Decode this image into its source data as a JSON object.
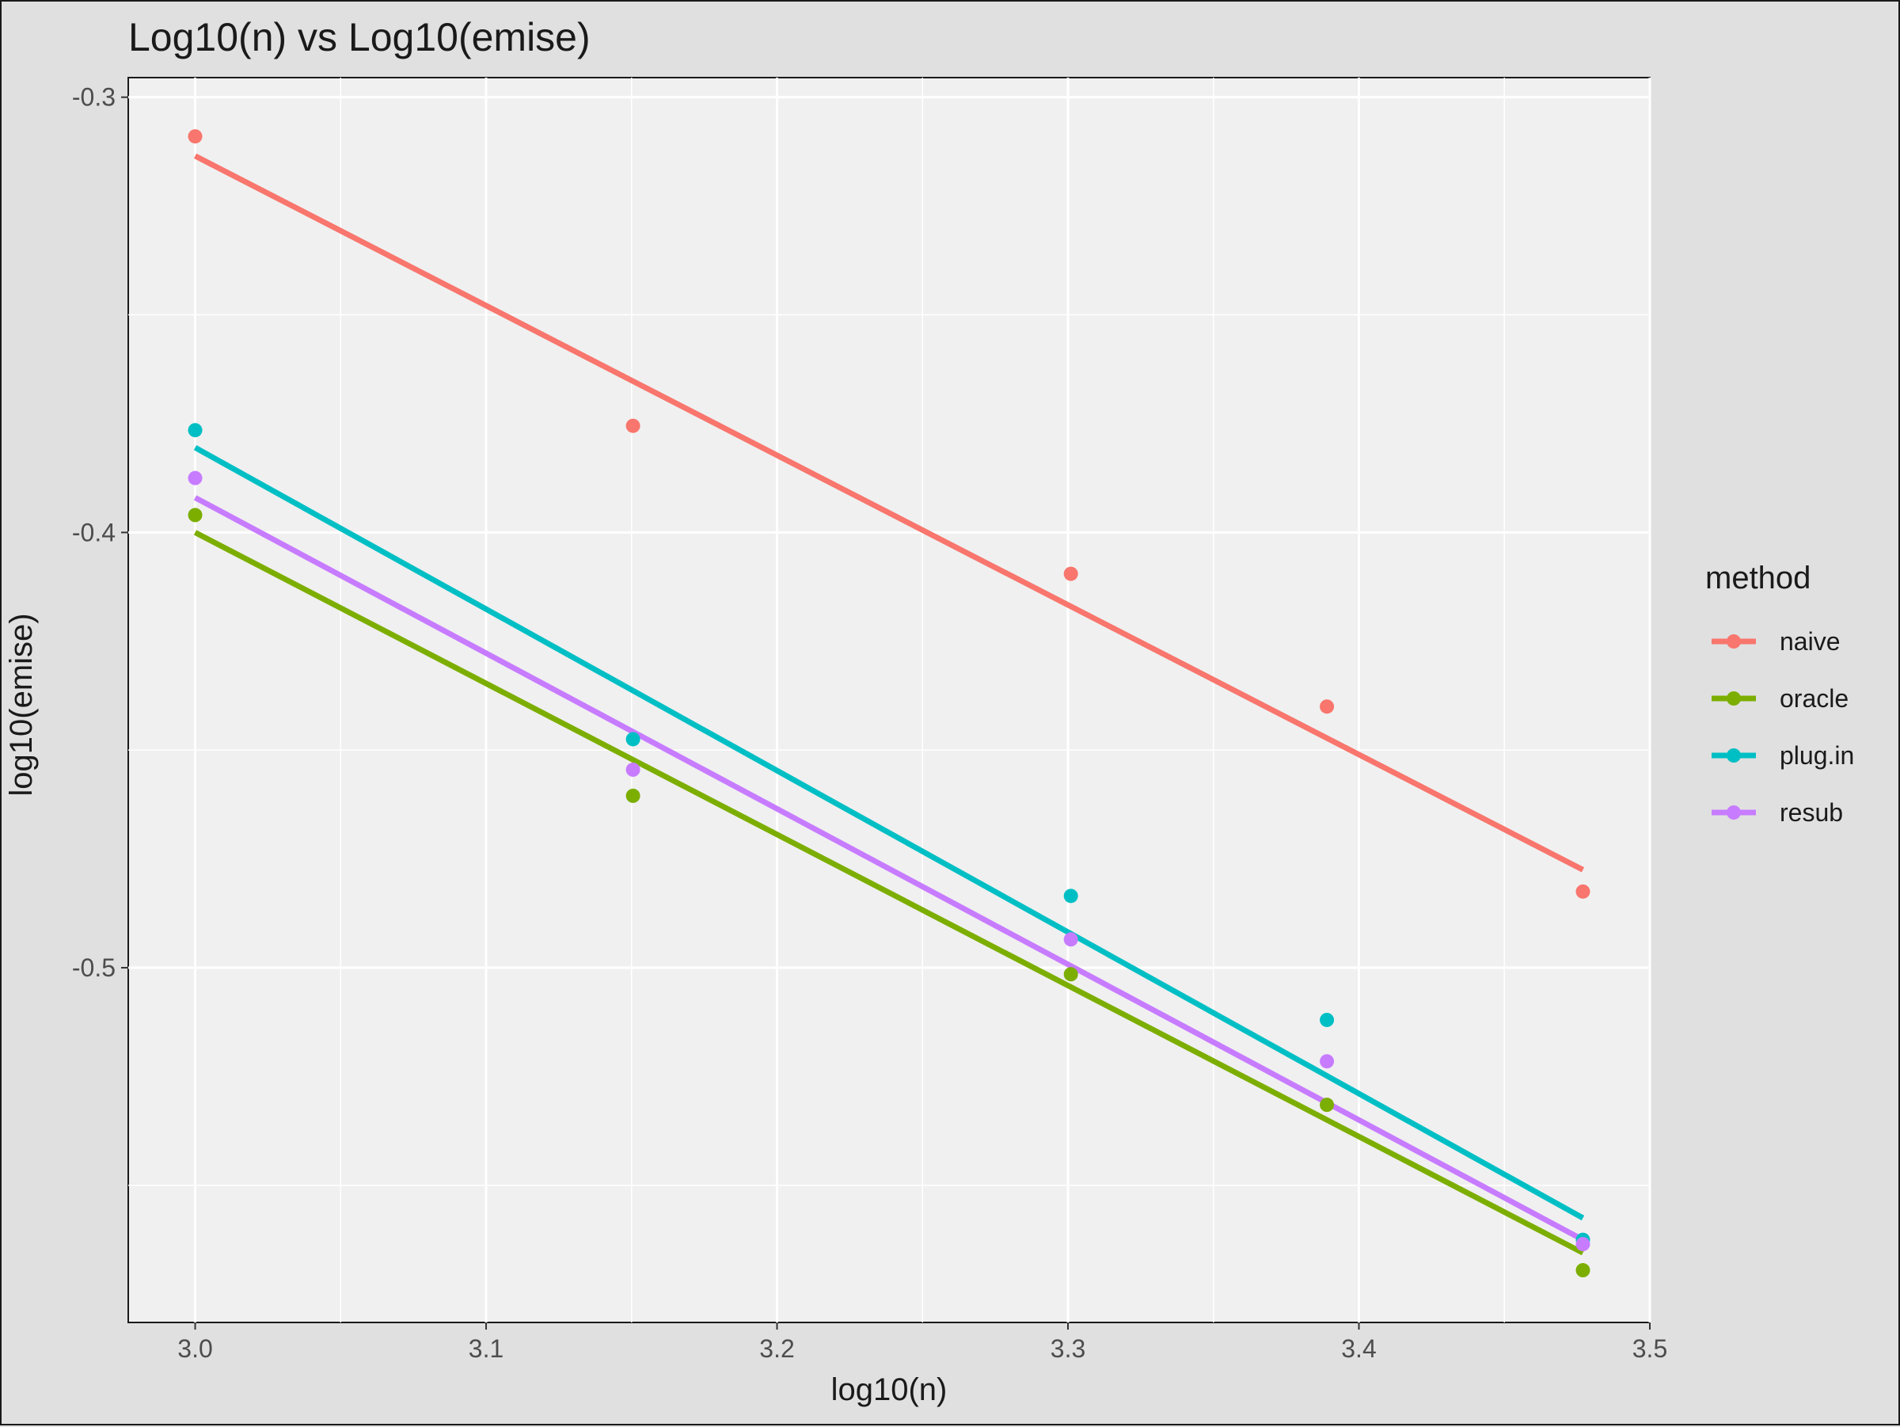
{
  "chart_data": {
    "type": "scatter",
    "title": "Log10(n) vs Log10(emise)",
    "xlabel": "log10(n)",
    "ylabel": "log10(emise)",
    "xlim": [
      2.977,
      3.5
    ],
    "ylim": [
      -0.5815,
      -0.2955
    ],
    "x_ticks": [
      3.0,
      3.1,
      3.2,
      3.3,
      3.4,
      3.5
    ],
    "x_tick_labels": [
      "3.0",
      "3.1",
      "3.2",
      "3.3",
      "3.4",
      "3.5"
    ],
    "y_ticks": [
      -0.3,
      -0.4,
      -0.5
    ],
    "y_tick_labels": [
      "-0.3",
      "-0.4",
      "-0.5"
    ],
    "grid": true,
    "legend_title": "method",
    "legend_position": "right",
    "x": [
      3.0,
      3.1505,
      3.301,
      3.389,
      3.477
    ],
    "series": [
      {
        "name": "naive",
        "color": "#F8766D",
        "values": [
          -0.309,
          -0.3755,
          -0.4095,
          -0.44,
          -0.4825
        ],
        "fit": [
          -0.3135,
          -0.4775
        ]
      },
      {
        "name": "oracle",
        "color": "#7CAE00",
        "values": [
          -0.396,
          -0.4605,
          -0.5015,
          -0.5315,
          -0.5695
        ],
        "fit": [
          -0.4,
          -0.5655
        ]
      },
      {
        "name": "plug.in",
        "color": "#00BFC4",
        "values": [
          -0.3765,
          -0.4475,
          -0.4835,
          -0.512,
          -0.5625
        ],
        "fit": [
          -0.3805,
          -0.5575
        ]
      },
      {
        "name": "resub",
        "color": "#C77CFF",
        "values": [
          -0.3875,
          -0.4545,
          -0.4935,
          -0.5215,
          -0.5635
        ],
        "fit": [
          -0.392,
          -0.5625
        ]
      }
    ]
  }
}
